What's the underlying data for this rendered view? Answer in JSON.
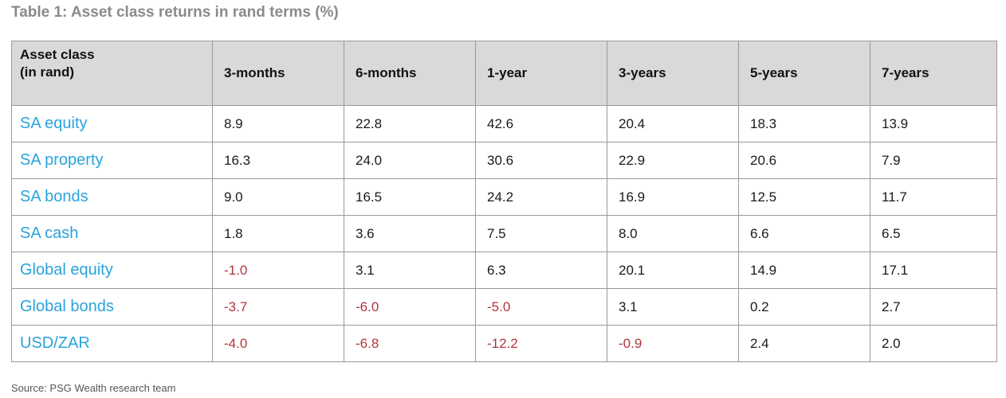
{
  "title": "Table 1: Asset class returns in rand terms (%)",
  "colors": {
    "title": "#8a8a8a",
    "header_bg": "#d9d9d9",
    "asset_label": "#29a3dc",
    "negative_value": "#b0353b",
    "border": "#9a9a9a"
  },
  "table": {
    "header_line1": "Asset class",
    "header_line2": "(in rand)",
    "columns": [
      "3-months",
      "6-months",
      "1-year",
      "3-years",
      "5-years",
      "7-years"
    ],
    "rows": [
      {
        "asset": "SA equity",
        "values": [
          "8.9",
          "22.8",
          "42.6",
          "20.4",
          "18.3",
          "13.9"
        ]
      },
      {
        "asset": "SA property",
        "values": [
          "16.3",
          "24.0",
          "30.6",
          "22.9",
          "20.6",
          "7.9"
        ]
      },
      {
        "asset": "SA bonds",
        "values": [
          "9.0",
          "16.5",
          "24.2",
          "16.9",
          "12.5",
          "11.7"
        ]
      },
      {
        "asset": "SA cash",
        "values": [
          "1.8",
          "3.6",
          "7.5",
          "8.0",
          "6.6",
          "6.5"
        ]
      },
      {
        "asset": "Global equity",
        "values": [
          "-1.0",
          "3.1",
          "6.3",
          "20.1",
          "14.9",
          "17.1"
        ]
      },
      {
        "asset": "Global bonds",
        "values": [
          "-3.7",
          "-6.0",
          "-5.0",
          "3.1",
          "0.2",
          "2.7"
        ]
      },
      {
        "asset": "USD/ZAR",
        "values": [
          "-4.0",
          "-6.8",
          "-12.2",
          "-0.9",
          "2.4",
          "2.0"
        ]
      }
    ]
  },
  "source": "Source: PSG Wealth research team"
}
